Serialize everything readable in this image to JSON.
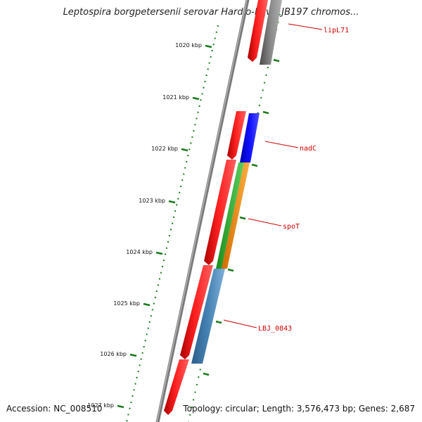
{
  "title": "Leptospira borgpetersenii serovar Hardjo-bovis JB197 chromos...",
  "footer": {
    "accession": "Accession: NC_008510",
    "summary": "Topology: circular; Length: 3,576,473 bp; Genes: 2,687"
  },
  "colors": {
    "label": "#cc0000",
    "tick": "#1a7a1a",
    "backbone": "#808080"
  },
  "ticks": [
    {
      "label": "1020 kbp"
    },
    {
      "label": "1021 kbp"
    },
    {
      "label": "1022 kbp"
    },
    {
      "label": "1023 kbp"
    },
    {
      "label": "1024 kbp"
    },
    {
      "label": "1025 kbp"
    },
    {
      "label": "1026 kbp"
    },
    {
      "label": "1027 kbp"
    }
  ],
  "genes": [
    {
      "name": "lipL71",
      "color": "#808080"
    },
    {
      "name": "nadC",
      "color": "#0000ee"
    },
    {
      "name": "spoT",
      "color": "#ff8c00"
    },
    {
      "name": "LBJ_0843",
      "color": "#4682b4"
    }
  ]
}
